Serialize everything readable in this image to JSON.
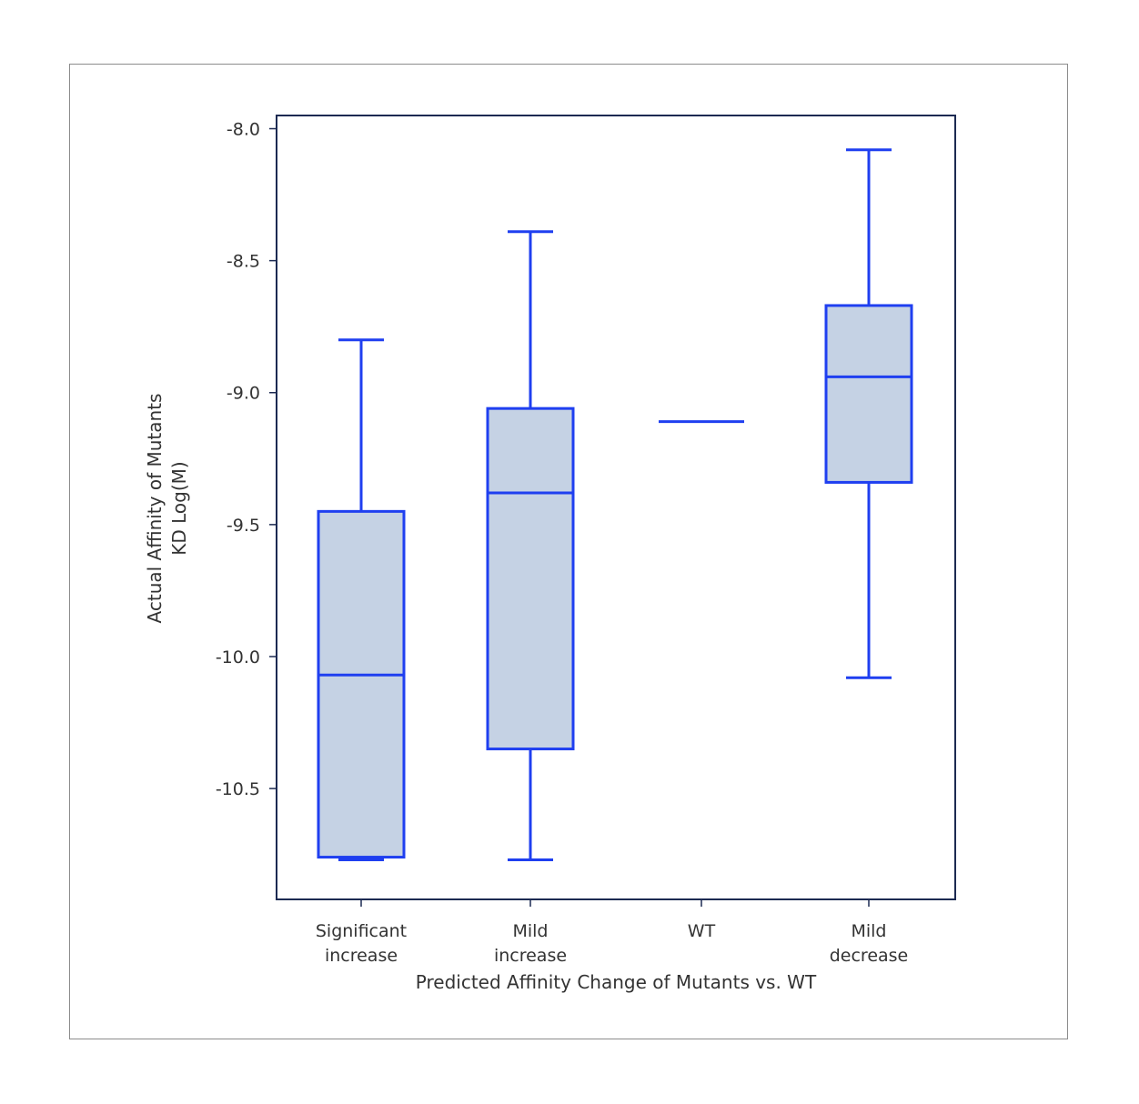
{
  "chart_data": {
    "type": "box",
    "title": "",
    "xlabel": "Predicted Affinity Change of Mutants vs. WT",
    "ylabel_lines": [
      "Actual Affinity of Mutants",
      "KD Log(M)"
    ],
    "ylim": [
      -10.92,
      -7.95
    ],
    "yticks": [
      -8.0,
      -8.5,
      -9.0,
      -9.5,
      -10.0,
      -10.5
    ],
    "ytick_labels": [
      "-8.0",
      "-8.5",
      "-9.0",
      "-9.5",
      "-10.0",
      "-10.5"
    ],
    "categories": [
      [
        "Significant",
        "increase"
      ],
      [
        "Mild",
        "increase"
      ],
      [
        "WT"
      ],
      [
        "Mild",
        "decrease"
      ]
    ],
    "boxes": [
      {
        "whisker_low": -10.77,
        "q1": -10.76,
        "median": -10.07,
        "q3": -9.45,
        "whisker_high": -8.8
      },
      {
        "whisker_low": -10.77,
        "q1": -10.35,
        "median": -9.38,
        "q3": -9.06,
        "whisker_high": -8.39
      },
      {
        "whisker_low": -9.11,
        "q1": -9.11,
        "median": -9.11,
        "q3": -9.11,
        "whisker_high": -9.11
      },
      {
        "whisker_low": -10.08,
        "q1": -9.34,
        "median": -8.94,
        "q3": -8.67,
        "whisker_high": -8.08
      }
    ],
    "grid": false,
    "legend": "none"
  },
  "colors": {
    "box_edge": "#1f3ff0",
    "box_fill": "#c5d2e4",
    "axis": "#1c2a52",
    "text": "#333333",
    "frame": "#8c8c8c"
  }
}
